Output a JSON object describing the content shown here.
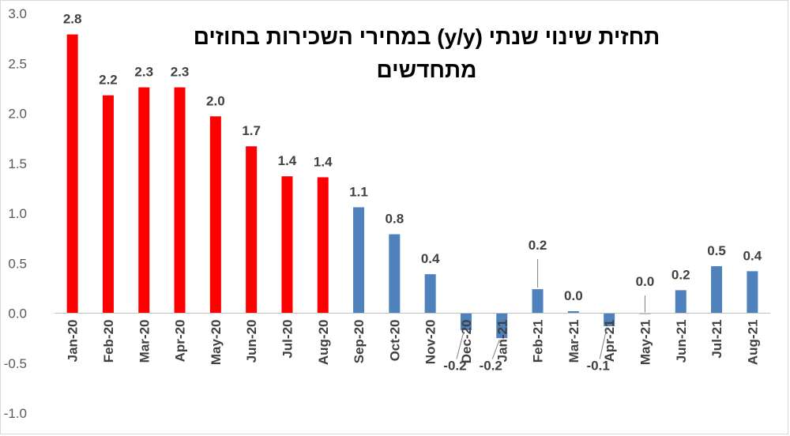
{
  "chart_data": {
    "type": "bar",
    "title": "תחזית שינוי שנתי (y/y) במחירי השכירות בחוזים מתחדשים",
    "xlabel": "",
    "ylabel": "",
    "ylim": [
      -1.0,
      3.0
    ],
    "yticks": [
      "3.0",
      "2.5",
      "2.0",
      "1.5",
      "1.0",
      "0.5",
      "0.0",
      "-0.5",
      "-1.0"
    ],
    "ytick_values": [
      3.0,
      2.5,
      2.0,
      1.5,
      1.0,
      0.5,
      0.0,
      -0.5,
      -1.0
    ],
    "grid": false,
    "categories": [
      "Jan-20",
      "Feb-20",
      "Mar-20",
      "Apr-20",
      "May-20",
      "Jun-20",
      "Jul-20",
      "Aug-20",
      "Sep-20",
      "Oct-20",
      "Nov-20",
      "Dec-20",
      "Jan-21",
      "Feb-21",
      "Mar-21",
      "Apr-21",
      "May-21",
      "Jun-21",
      "Jul-21",
      "Aug-21"
    ],
    "values": [
      2.79,
      2.18,
      2.26,
      2.26,
      1.97,
      1.67,
      1.37,
      1.36,
      1.06,
      0.79,
      0.39,
      -0.17,
      -0.25,
      0.24,
      0.02,
      -0.13,
      0.0,
      0.23,
      0.47,
      0.42
    ],
    "data_labels": [
      "2.8",
      "2.2",
      "2.3",
      "2.3",
      "2.0",
      "1.7",
      "1.4",
      "1.4",
      "1.1",
      "0.8",
      "0.4",
      "-0.2",
      "-0.2",
      "0.2",
      "0.0",
      "-0.1",
      "0.0",
      "0.2",
      "0.5",
      "0.4"
    ],
    "colors": [
      "#ff0000",
      "#ff0000",
      "#ff0000",
      "#ff0000",
      "#ff0000",
      "#ff0000",
      "#ff0000",
      "#ff0000",
      "#4f81bd",
      "#4f81bd",
      "#4f81bd",
      "#4f81bd",
      "#4f81bd",
      "#4f81bd",
      "#4f81bd",
      "#4f81bd",
      "#4f81bd",
      "#4f81bd",
      "#4f81bd",
      "#4f81bd"
    ]
  }
}
